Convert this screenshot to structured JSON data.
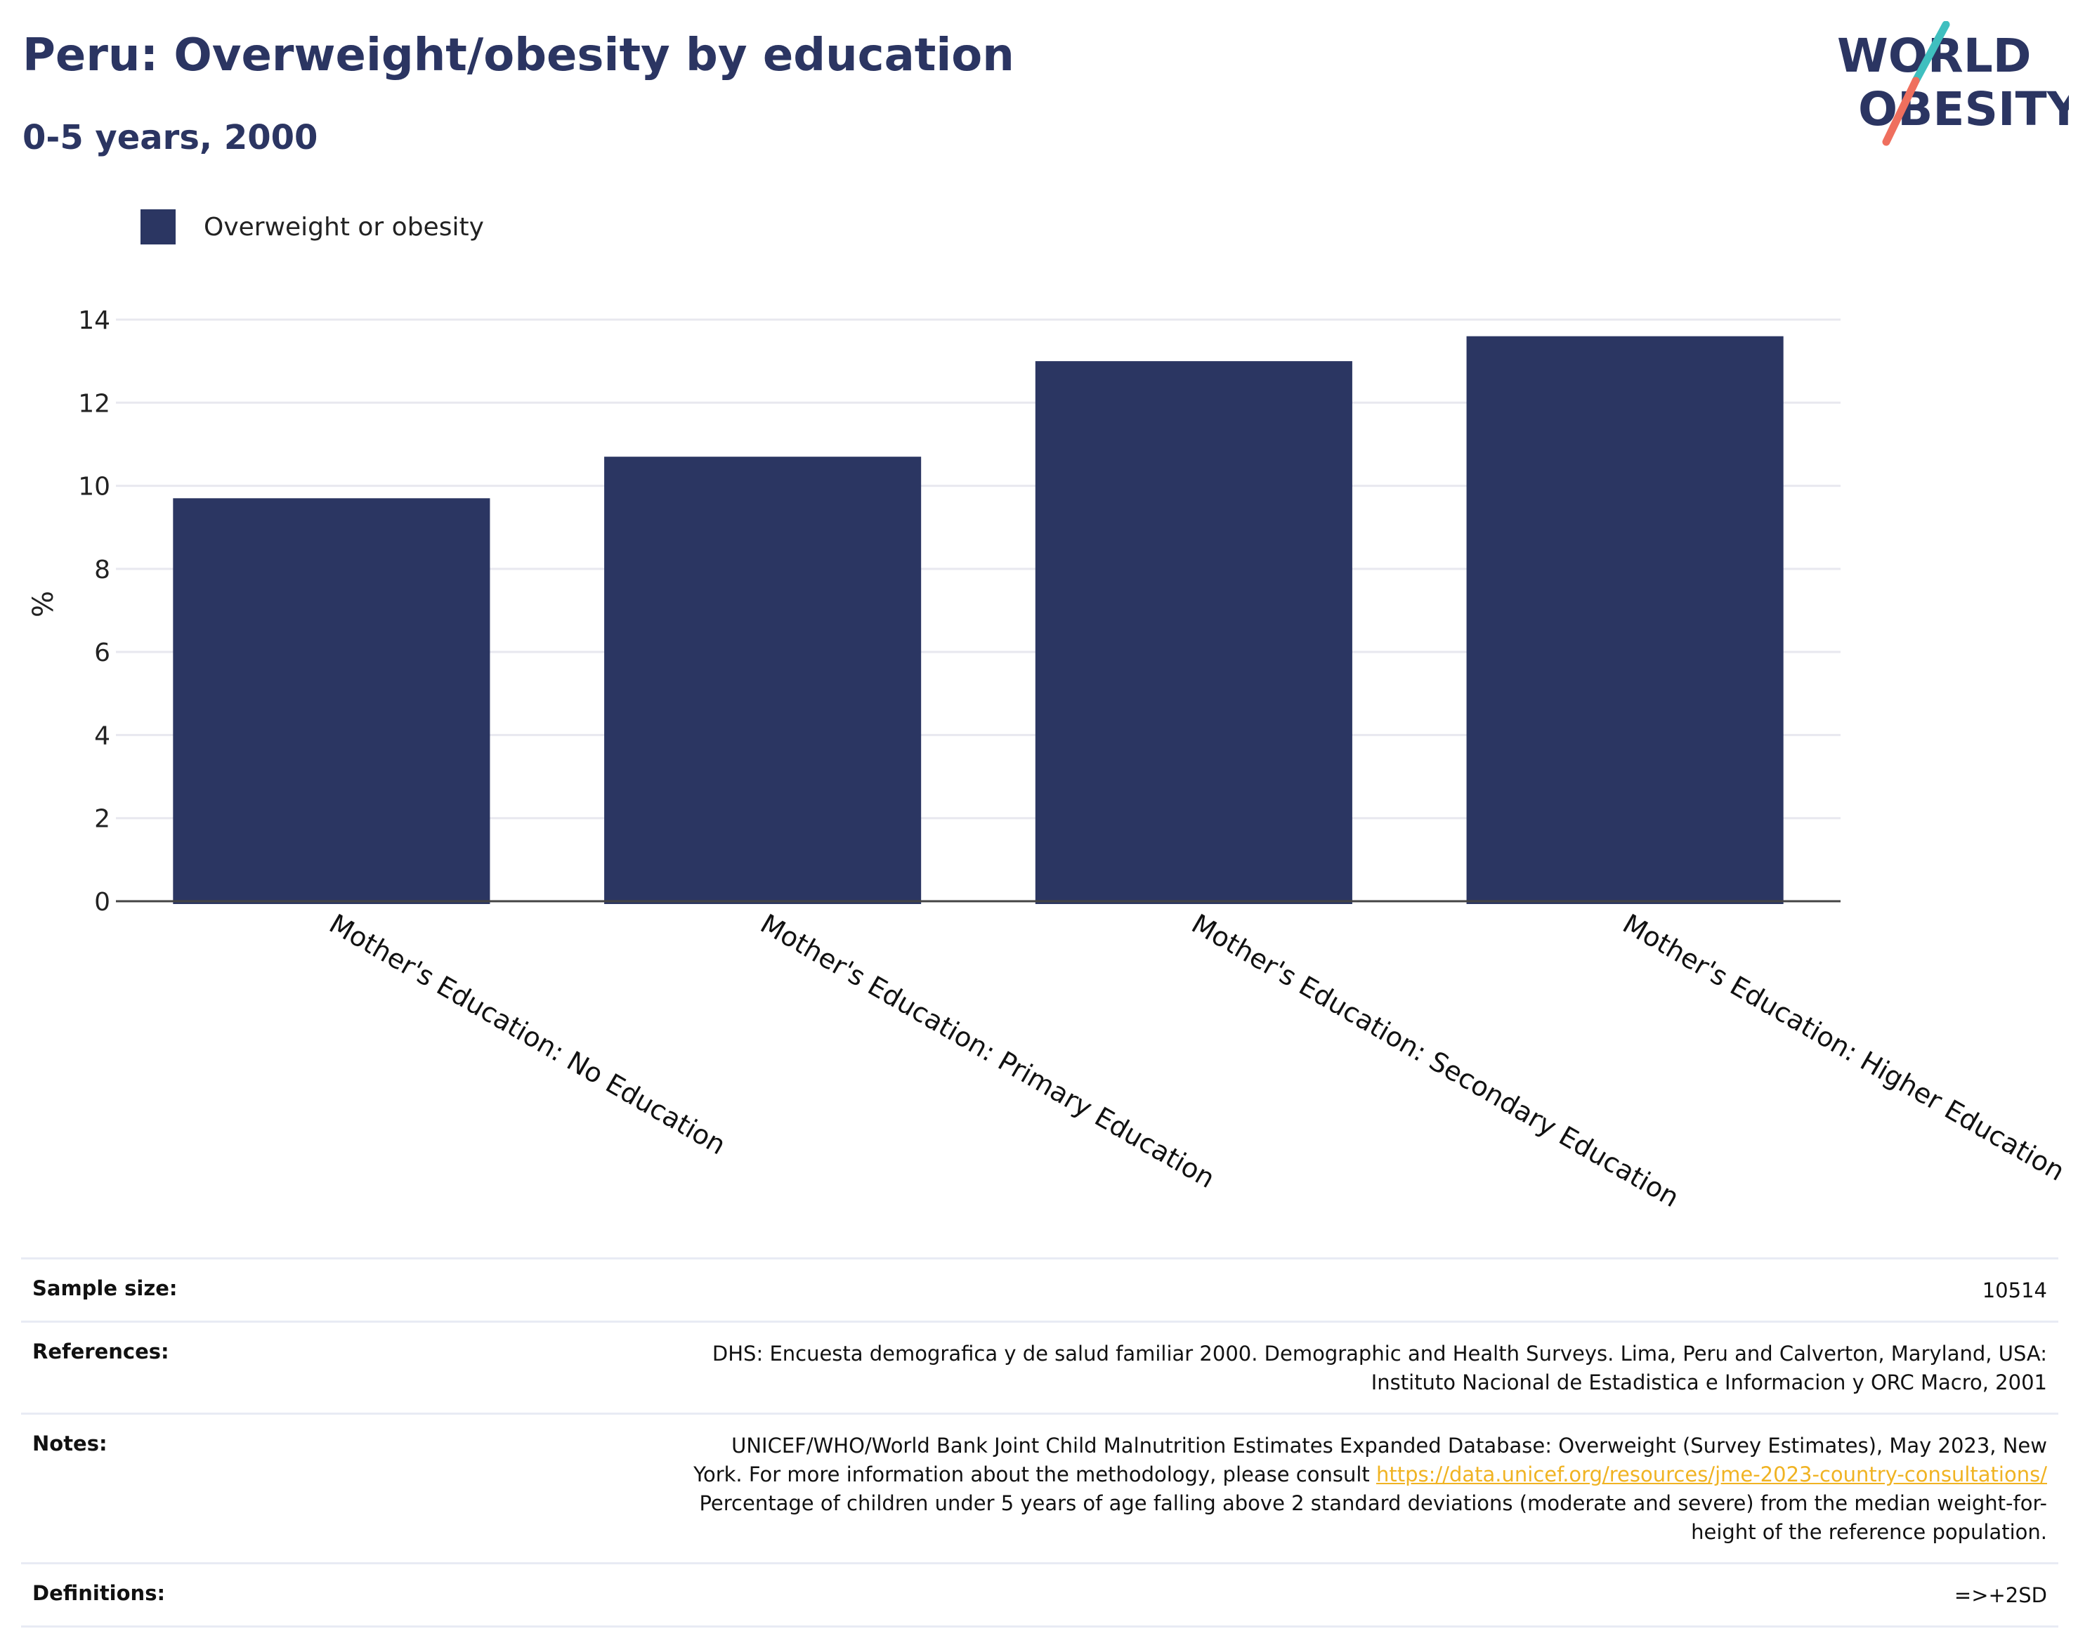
{
  "header": {
    "title": "Peru: Overweight/obesity by education",
    "subtitle": "0-5 years, 2000",
    "logo_line1": "WORLD",
    "logo_line2": "OBESITY"
  },
  "legend": {
    "label": "Overweight or obesity"
  },
  "colors": {
    "bar": "#2b3662",
    "title": "#2b3562",
    "grid": "#e8e8ef",
    "link": "#f0b323",
    "logo_teal": "#3fbfbf",
    "logo_coral": "#ef6f5e"
  },
  "chart_data": {
    "type": "bar",
    "title": "Peru: Overweight/obesity by education",
    "subtitle": "0-5 years, 2000",
    "ylabel": "%",
    "xlabel": "",
    "ylim": [
      0,
      14
    ],
    "yticks": [
      0,
      2,
      4,
      6,
      8,
      10,
      12,
      14
    ],
    "grid": true,
    "legend_position": "top-left",
    "categories": [
      "Mother's Education: No Education",
      "Mother's Education: Primary Education",
      "Mother's Education: Secondary Education",
      "Mother's Education: Higher Education"
    ],
    "series": [
      {
        "name": "Overweight or obesity",
        "values": [
          9.7,
          10.7,
          13.0,
          13.6
        ]
      }
    ]
  },
  "info": {
    "sample_size_label": "Sample size:",
    "sample_size_value": "10514",
    "references_label": "References:",
    "references_lines": [
      "DHS: Encuesta demografica y de salud familiar 2000. Demographic and Health Surveys. Lima, Peru and Calverton, Maryland, USA:",
      "Instituto Nacional de Estadistica e Informacion y ORC Macro, 2001"
    ],
    "notes_label": "Notes:",
    "notes_line1": "UNICEF/WHO/World Bank Joint Child Malnutrition Estimates Expanded Database: Overweight (Survey Estimates), May 2023, New",
    "notes_line2_prefix": "York. For more information about the methodology, please consult ",
    "notes_link": "https://data.unicef.org/resources/jme-2023-country-consultations/",
    "notes_line3": "Percentage of children under 5 years of age falling above 2 standard deviations (moderate and severe) from the median weight-for-",
    "notes_line4": "height of the reference population.",
    "definitions_label": "Definitions:",
    "definitions_value": "=>+2SD"
  }
}
